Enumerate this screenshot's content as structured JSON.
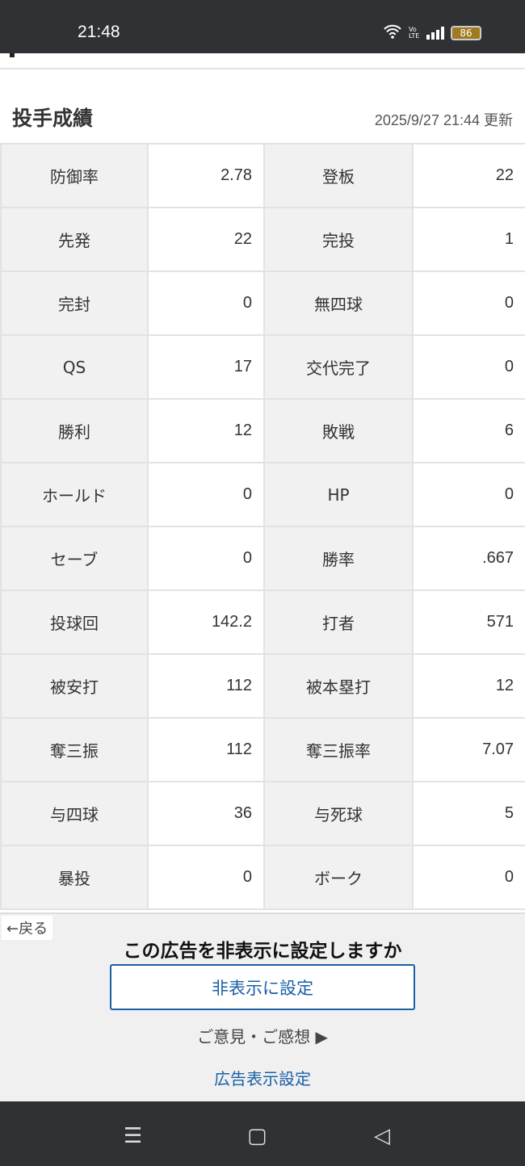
{
  "status_bar": {
    "time": "21:48",
    "battery": "86",
    "network": "VoLTE"
  },
  "section": {
    "title": "投手成績",
    "updated": "2025/9/27 21:44 更新"
  },
  "stats": [
    [
      {
        "l": "防御率",
        "v": "2.78"
      },
      {
        "l": "登板",
        "v": "22"
      }
    ],
    [
      {
        "l": "先発",
        "v": "22"
      },
      {
        "l": "完投",
        "v": "1"
      }
    ],
    [
      {
        "l": "完封",
        "v": "0"
      },
      {
        "l": "無四球",
        "v": "0"
      }
    ],
    [
      {
        "l": "QS",
        "v": "17"
      },
      {
        "l": "交代完了",
        "v": "0"
      }
    ],
    [
      {
        "l": "勝利",
        "v": "12"
      },
      {
        "l": "敗戦",
        "v": "6"
      }
    ],
    [
      {
        "l": "ホールド",
        "v": "0"
      },
      {
        "l": "HP",
        "v": "0"
      }
    ],
    [
      {
        "l": "セーブ",
        "v": "0"
      },
      {
        "l": "勝率",
        "v": ".667"
      }
    ],
    [
      {
        "l": "投球回",
        "v": "142.2"
      },
      {
        "l": "打者",
        "v": "571"
      }
    ],
    [
      {
        "l": "被安打",
        "v": "112"
      },
      {
        "l": "被本塁打",
        "v": "12"
      }
    ],
    [
      {
        "l": "奪三振",
        "v": "112"
      },
      {
        "l": "奪三振率",
        "v": "7.07"
      }
    ],
    [
      {
        "l": "与四球",
        "v": "36"
      },
      {
        "l": "与死球",
        "v": "5"
      }
    ],
    [
      {
        "l": "暴投",
        "v": "0"
      },
      {
        "l": "ボーク",
        "v": "0"
      }
    ]
  ],
  "ad": {
    "back": "←戻る",
    "question": "この広告を非表示に設定しますか",
    "hide_button": "非表示に設定",
    "feedback": "ご意見・ご感想 ▶",
    "ad_settings": "広告表示設定"
  },
  "nav": {
    "menu": "☰",
    "home": "▢",
    "back": "◁"
  }
}
